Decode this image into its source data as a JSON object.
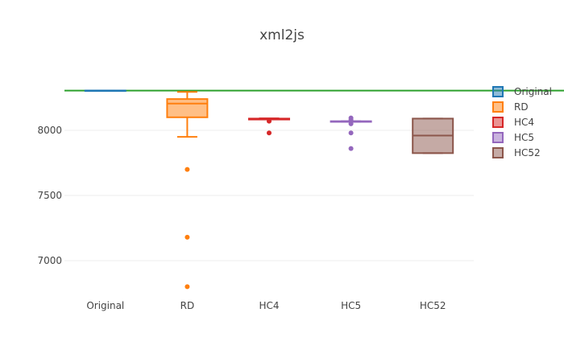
{
  "chart_data": {
    "type": "box",
    "title": "xml2js",
    "categories": [
      "Original",
      "RD",
      "HC4",
      "HC5",
      "HC52"
    ],
    "ylim": [
      6700,
      8350
    ],
    "yticks": [
      7000,
      7500,
      8000
    ],
    "grid": true,
    "legend_position": "right",
    "reference_line": {
      "y": 8305,
      "color": "#2ca02c"
    },
    "series": [
      {
        "name": "Original",
        "color": "#1f77b4",
        "q1": 8305,
        "median": 8305,
        "q3": 8305,
        "whisker_low": 8305,
        "whisker_high": 8305,
        "outliers": []
      },
      {
        "name": "RD",
        "color": "#ff7f0e",
        "q1": 8100,
        "median": 8205,
        "q3": 8240,
        "whisker_low": 7950,
        "whisker_high": 8295,
        "outliers": [
          7700,
          7180,
          6800
        ]
      },
      {
        "name": "HC4",
        "color": "#d62728",
        "q1": 8083,
        "median": 8088,
        "q3": 8090,
        "whisker_low": 8083,
        "whisker_high": 8092,
        "outliers": [
          8070,
          7980
        ]
      },
      {
        "name": "HC5",
        "color": "#9467bd",
        "q1": 8065,
        "median": 8068,
        "q3": 8070,
        "whisker_low": 8065,
        "whisker_high": 8070,
        "outliers": [
          8095,
          8080,
          8050,
          7980,
          7860
        ]
      },
      {
        "name": "HC52",
        "color": "#8c564b",
        "q1": 7825,
        "median": 7960,
        "q3": 8090,
        "whisker_low": 7825,
        "whisker_high": 8090,
        "outliers": []
      }
    ]
  }
}
